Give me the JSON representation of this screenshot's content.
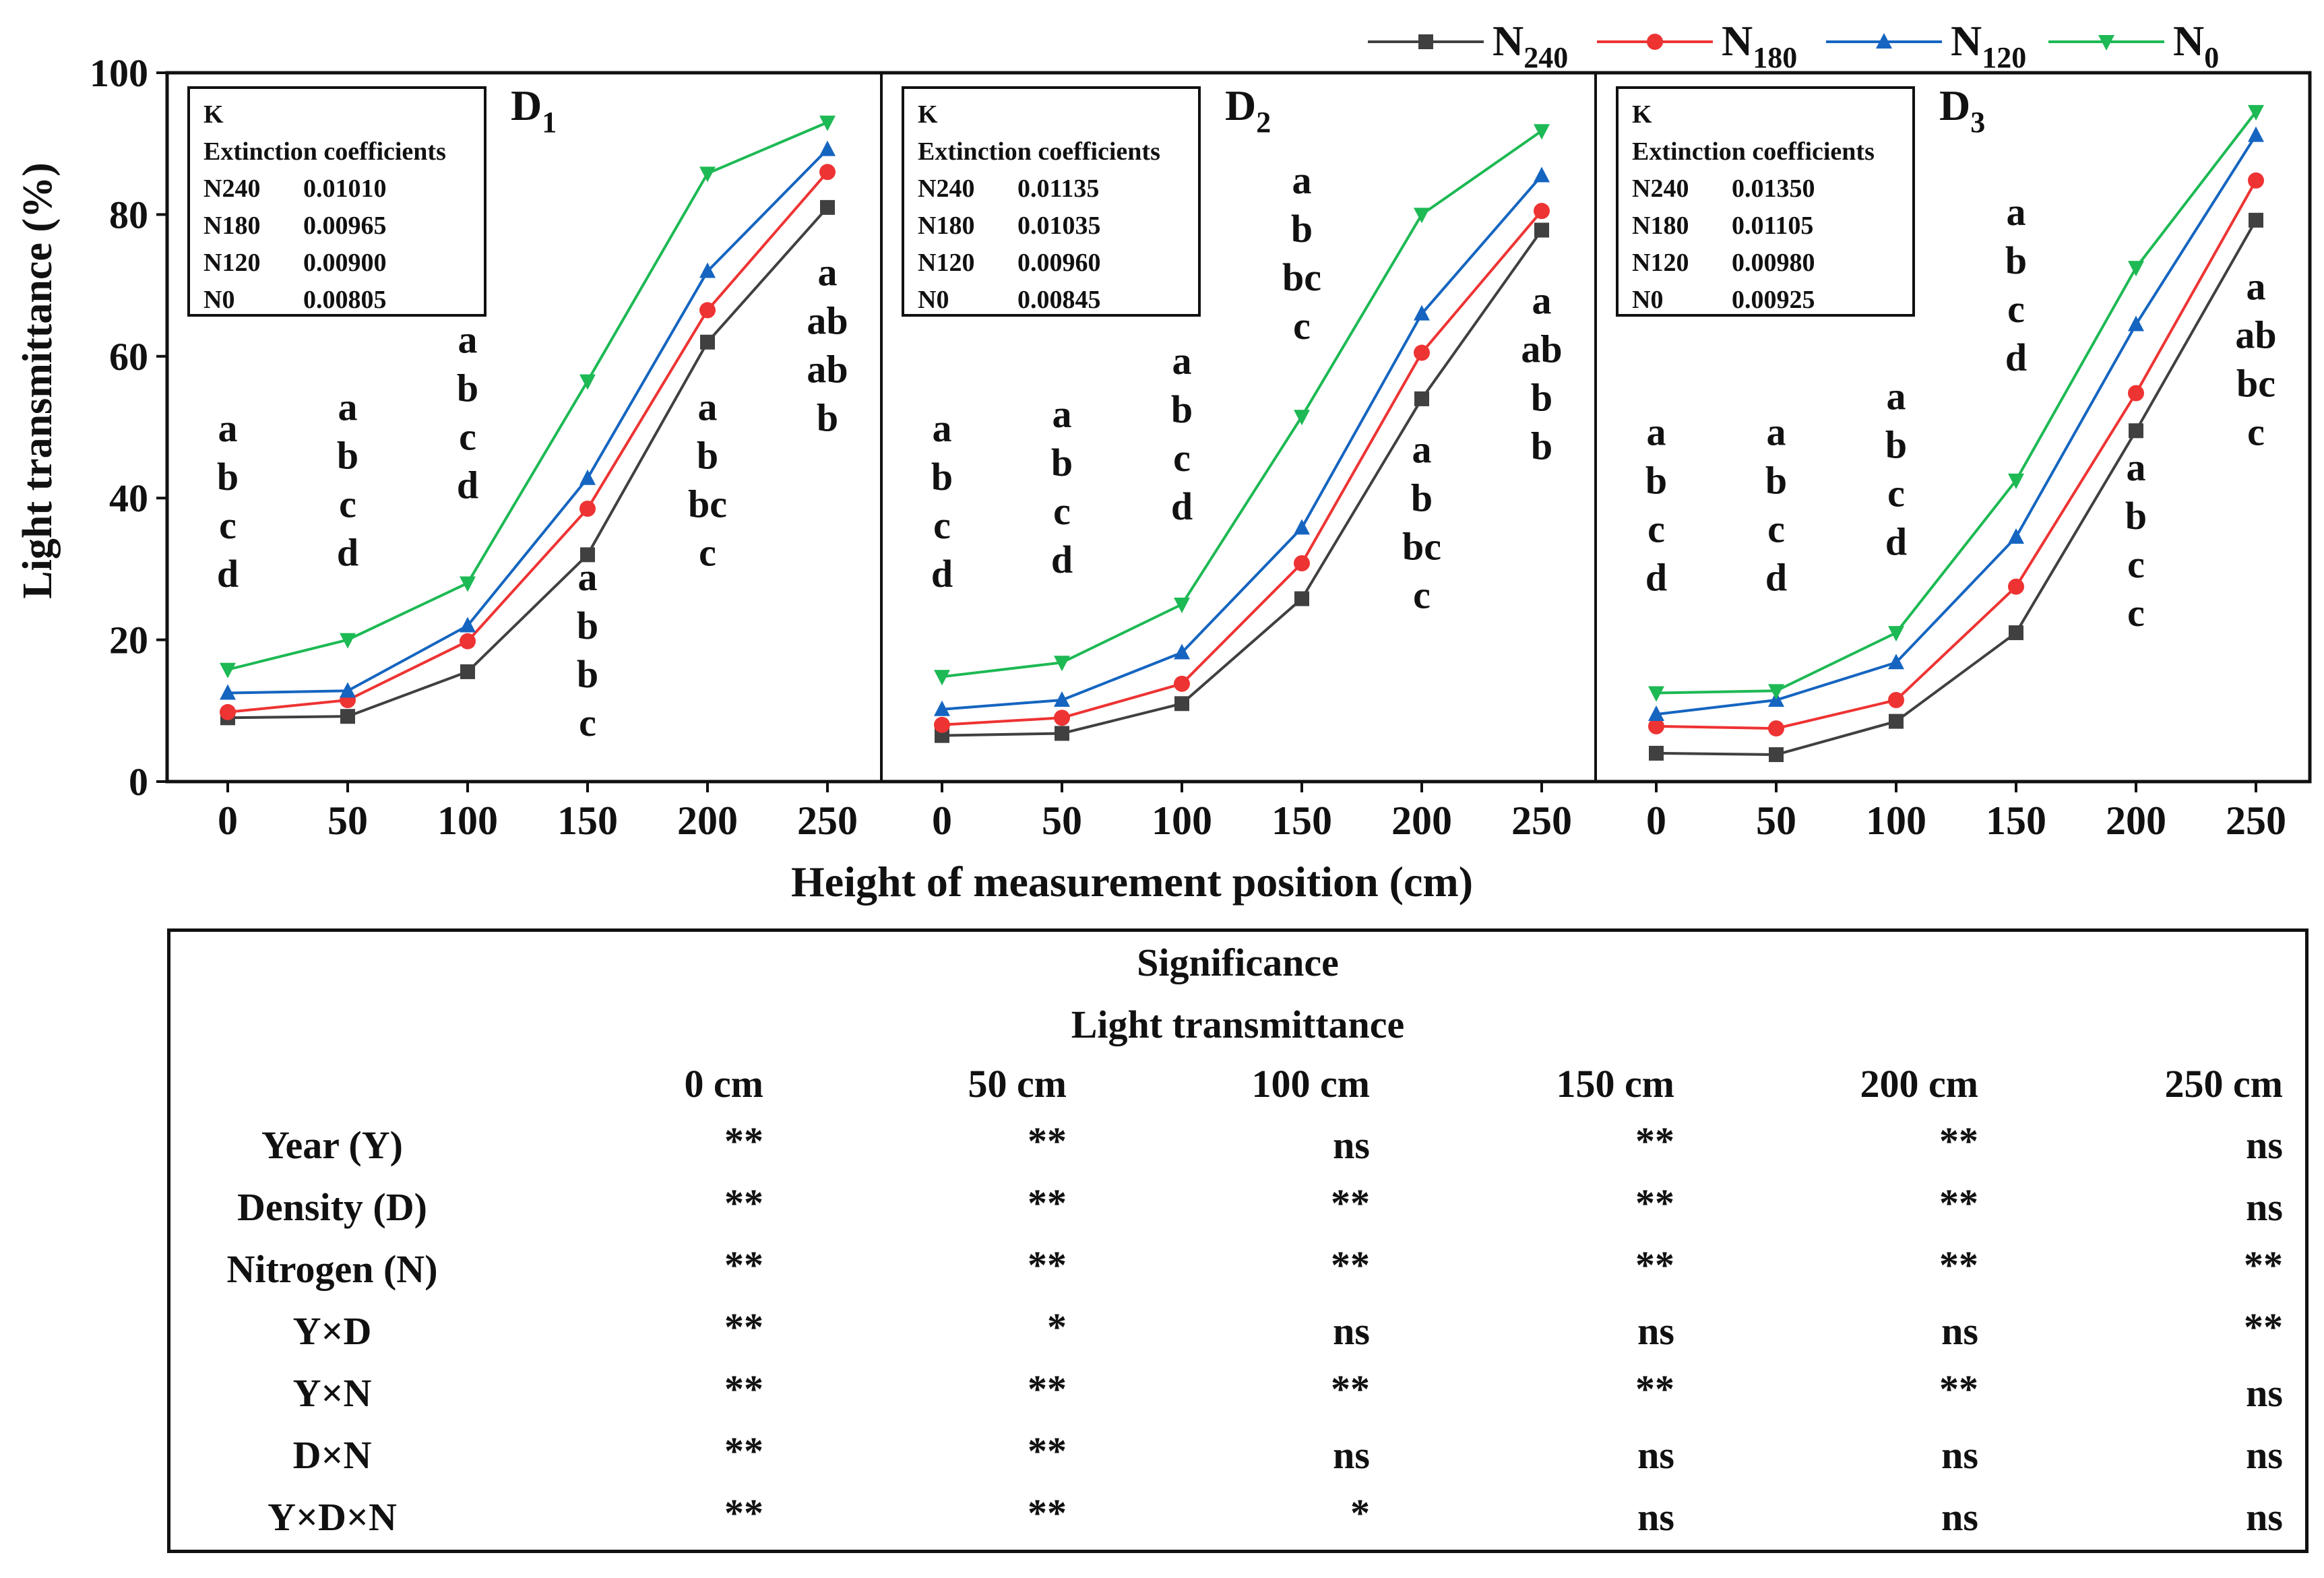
{
  "chart_data": {
    "type": "line",
    "ylabel": "Light transmittance (%)",
    "xlabel": "Height of measurement position (cm)",
    "ylim": [
      0,
      100
    ],
    "yticks": [
      "0",
      "20",
      "40",
      "60",
      "80",
      "100"
    ],
    "x": [
      0,
      50,
      100,
      150,
      200,
      250
    ],
    "xticks": [
      "0",
      "50",
      "100",
      "150",
      "200",
      "250"
    ],
    "legend": [
      {
        "name": "N",
        "sub": "240",
        "color": "#404040",
        "marker": "square"
      },
      {
        "name": "N",
        "sub": "180",
        "color": "#ee3333",
        "marker": "circle"
      },
      {
        "name": "N",
        "sub": "120",
        "color": "#1565c0",
        "marker": "triangle-up"
      },
      {
        "name": "N",
        "sub": "0",
        "color": "#1db954",
        "marker": "triangle-down"
      }
    ],
    "panels": [
      {
        "title": "D",
        "title_sub": "1",
        "box_header": "K",
        "box_title": "Extinction coefficients",
        "coefficients": [
          [
            "N240",
            "0.01010"
          ],
          [
            "N180",
            "0.00965"
          ],
          [
            "N120",
            "0.00900"
          ],
          [
            "N0",
            "0.00805"
          ]
        ],
        "series": [
          {
            "name": "N240",
            "values": [
              9.0,
              9.2,
              15.5,
              32.0,
              62.0,
              81.0
            ]
          },
          {
            "name": "N180",
            "values": [
              9.8,
              11.5,
              19.8,
              38.5,
              66.5,
              86.0
            ]
          },
          {
            "name": "N120",
            "values": [
              12.5,
              12.8,
              22.0,
              42.8,
              72.0,
              89.2
            ]
          },
          {
            "name": "N0",
            "values": [
              15.8,
              20.0,
              28.0,
              56.5,
              85.8,
              93.0
            ]
          }
        ],
        "letters": [
          {
            "x": 0,
            "y_top": 48,
            "lines": [
              "a",
              "b",
              "c",
              "d"
            ]
          },
          {
            "x": 50,
            "y_top": 51,
            "lines": [
              "a",
              "b",
              "c",
              "d"
            ]
          },
          {
            "x": 100,
            "y_top": 60.5,
            "lines": [
              "a",
              "b",
              "c",
              "d"
            ]
          },
          {
            "x": 150,
            "y_top": 27,
            "lines": [
              "a",
              "b",
              "b",
              "c"
            ]
          },
          {
            "x": 200,
            "y_top": 51,
            "lines": [
              "a",
              "b",
              "bc",
              "c"
            ]
          },
          {
            "x": 250,
            "y_top": 70,
            "lines": [
              "a",
              "ab",
              "ab",
              "b"
            ]
          }
        ]
      },
      {
        "title": "D",
        "title_sub": "2",
        "box_header": "K",
        "box_title": "Extinction coefficients",
        "coefficients": [
          [
            "N240",
            "0.01135"
          ],
          [
            "N180",
            "0.01035"
          ],
          [
            "N120",
            "0.00960"
          ],
          [
            "N0",
            "0.00845"
          ]
        ],
        "series": [
          {
            "name": "N240",
            "values": [
              6.5,
              6.8,
              11.0,
              25.8,
              54.0,
              77.8
            ]
          },
          {
            "name": "N180",
            "values": [
              8.0,
              9.0,
              13.8,
              30.8,
              60.5,
              80.5
            ]
          },
          {
            "name": "N120",
            "values": [
              10.2,
              11.5,
              18.2,
              35.8,
              66.0,
              85.5
            ]
          },
          {
            "name": "N0",
            "values": [
              14.8,
              16.8,
              25.0,
              51.5,
              80.0,
              91.8
            ]
          }
        ],
        "letters": [
          {
            "x": 0,
            "y_top": 48,
            "lines": [
              "a",
              "b",
              "c",
              "d"
            ]
          },
          {
            "x": 50,
            "y_top": 50,
            "lines": [
              "a",
              "b",
              "c",
              "d"
            ]
          },
          {
            "x": 100,
            "y_top": 57.5,
            "lines": [
              "a",
              "b",
              "c",
              "d"
            ]
          },
          {
            "x": 150,
            "y_top": 83,
            "lines": [
              "a",
              "b",
              "bc",
              "c"
            ]
          },
          {
            "x": 200,
            "y_top": 45,
            "lines": [
              "a",
              "b",
              "bc",
              "c"
            ]
          },
          {
            "x": 250,
            "y_top": 66,
            "lines": [
              "a",
              "ab",
              "b",
              "b"
            ]
          }
        ]
      },
      {
        "title": "D",
        "title_sub": "3",
        "box_header": "K",
        "box_title": "Extinction coefficients",
        "coefficients": [
          [
            "N240",
            "0.01350"
          ],
          [
            "N180",
            "0.01105"
          ],
          [
            "N120",
            "0.00980"
          ],
          [
            "N0",
            "0.00925"
          ]
        ],
        "series": [
          {
            "name": "N240",
            "values": [
              4.0,
              3.8,
              8.5,
              21.0,
              49.5,
              79.2
            ]
          },
          {
            "name": "N180",
            "values": [
              7.8,
              7.5,
              11.5,
              27.5,
              54.8,
              84.8
            ]
          },
          {
            "name": "N120",
            "values": [
              9.5,
              11.5,
              16.8,
              34.5,
              64.5,
              91.2
            ]
          },
          {
            "name": "N0",
            "values": [
              12.5,
              12.8,
              21.0,
              42.5,
              72.5,
              94.5
            ]
          }
        ],
        "letters": [
          {
            "x": 0,
            "y_top": 47.5,
            "lines": [
              "a",
              "b",
              "c",
              "d"
            ]
          },
          {
            "x": 50,
            "y_top": 47.5,
            "lines": [
              "a",
              "b",
              "c",
              "d"
            ]
          },
          {
            "x": 100,
            "y_top": 52.5,
            "lines": [
              "a",
              "b",
              "c",
              "d"
            ]
          },
          {
            "x": 150,
            "y_top": 78.5,
            "lines": [
              "a",
              "b",
              "c",
              "d"
            ]
          },
          {
            "x": 200,
            "y_top": 42.5,
            "lines": [
              "a",
              "b",
              "c",
              "c"
            ]
          },
          {
            "x": 250,
            "y_top": 68,
            "lines": [
              "a",
              "ab",
              "bc",
              "c"
            ]
          }
        ]
      }
    ]
  },
  "significance": {
    "title": "Significance",
    "subtitle": "Light transmittance",
    "columns": [
      "0 cm",
      "50 cm",
      "100 cm",
      "150 cm",
      "200 cm",
      "250 cm"
    ],
    "rows": [
      {
        "label": "Year (Y)",
        "values": [
          "**",
          "**",
          "ns",
          "**",
          "**",
          "ns"
        ]
      },
      {
        "label": "Density (D)",
        "values": [
          "**",
          "**",
          "**",
          "**",
          "**",
          "ns"
        ]
      },
      {
        "label": "Nitrogen (N)",
        "values": [
          "**",
          "**",
          "**",
          "**",
          "**",
          "**"
        ]
      },
      {
        "label": "Y×D",
        "values": [
          "**",
          "*",
          "ns",
          "ns",
          "ns",
          "**"
        ]
      },
      {
        "label": "Y×N",
        "values": [
          "**",
          "**",
          "**",
          "**",
          "**",
          "ns"
        ]
      },
      {
        "label": "D×N",
        "values": [
          "**",
          "**",
          "ns",
          "ns",
          "ns",
          "ns"
        ]
      },
      {
        "label": "Y×D×N",
        "values": [
          "**",
          "**",
          "*",
          "ns",
          "ns",
          "ns"
        ]
      }
    ]
  }
}
